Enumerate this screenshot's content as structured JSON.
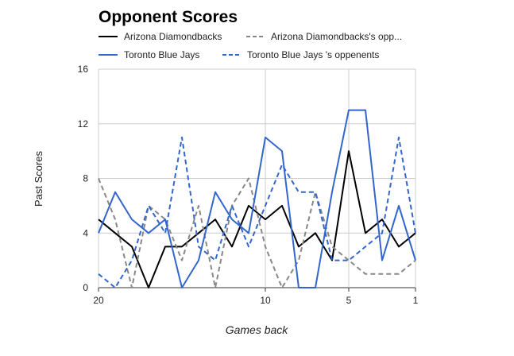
{
  "chart_data": {
    "type": "line",
    "title": "Opponent Scores",
    "xlabel": "Games back",
    "ylabel": "Past Scores",
    "xlim": [
      20,
      1
    ],
    "ylim": [
      0,
      16
    ],
    "x_ticks": [
      20,
      10,
      5,
      1
    ],
    "y_ticks": [
      0,
      4,
      8,
      12,
      16
    ],
    "grid": true,
    "legend_position": "top",
    "x": [
      20,
      19,
      18,
      17,
      16,
      15,
      14,
      13,
      12,
      11,
      10,
      9,
      8,
      7,
      6,
      5,
      4,
      3,
      2,
      1
    ],
    "series": [
      {
        "name": "Arizona Diamondbacks",
        "legend_label": "Arizona Diamondbacks",
        "color": "#000000",
        "dash": "solid",
        "values": [
          5,
          4,
          3,
          0,
          3,
          3,
          4,
          5,
          3,
          6,
          5,
          6,
          3,
          4,
          2,
          10,
          4,
          5,
          3,
          4
        ]
      },
      {
        "name": "Arizona Diamondbacks's opponents",
        "legend_label": "Arizona Diamondbacks's opp...",
        "color": "#888888",
        "dash": "dashed",
        "values": [
          8,
          5,
          0,
          6,
          5,
          2,
          6,
          0,
          6,
          8,
          3,
          0,
          2,
          7,
          3,
          2,
          1,
          1,
          1,
          2
        ]
      },
      {
        "name": "Toronto Blue Jays",
        "legend_label": "Toronto Blue Jays",
        "color": "#3366cc",
        "dash": "solid",
        "values": [
          4,
          7,
          5,
          4,
          5,
          0,
          2,
          7,
          5,
          4,
          11,
          10,
          0,
          0,
          7,
          13,
          13,
          2,
          6,
          2
        ]
      },
      {
        "name": "Toronto Blue Jays 's oppenents",
        "legend_label": "Toronto Blue Jays 's oppenents",
        "color": "#3366cc",
        "dash": "dashed",
        "values": [
          1,
          0,
          2,
          6,
          4,
          11,
          3,
          2,
          6,
          3,
          6,
          9,
          7,
          7,
          2,
          2,
          3,
          4,
          11,
          4
        ]
      }
    ]
  }
}
